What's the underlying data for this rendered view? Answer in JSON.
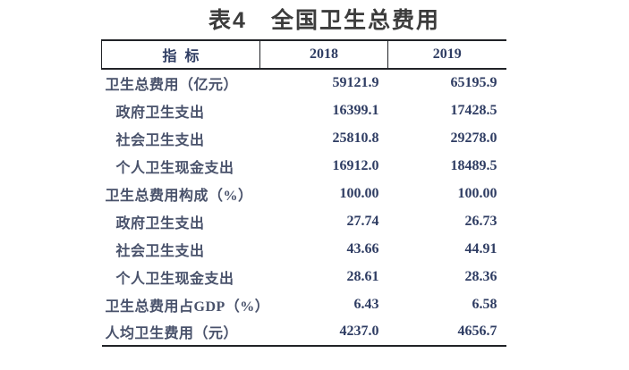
{
  "title": "表4　全国卫生总费用",
  "table": {
    "header": {
      "indicator": "指 标",
      "year_2018": "2018",
      "year_2019": "2019"
    },
    "rows": [
      {
        "label": "卫生总费用（亿元）",
        "indent": false,
        "y2018": "59121.9",
        "y2019": "65195.9"
      },
      {
        "label": "政府卫生支出",
        "indent": true,
        "y2018": "16399.1",
        "y2019": "17428.5"
      },
      {
        "label": "社会卫生支出",
        "indent": true,
        "y2018": "25810.8",
        "y2019": "29278.0"
      },
      {
        "label": "个人卫生现金支出",
        "indent": true,
        "y2018": "16912.0",
        "y2019": "18489.5"
      },
      {
        "label": "卫生总费用构成（%）",
        "indent": false,
        "y2018": "100.00",
        "y2019": "100.00"
      },
      {
        "label": "政府卫生支出",
        "indent": true,
        "y2018": "27.74",
        "y2019": "26.73"
      },
      {
        "label": "社会卫生支出",
        "indent": true,
        "y2018": "43.66",
        "y2019": "44.91"
      },
      {
        "label": "个人卫生现金支出",
        "indent": true,
        "y2018": "28.61",
        "y2019": "28.36"
      },
      {
        "label": "卫生总费用占GDP（%）",
        "indent": false,
        "y2018": "6.43",
        "y2019": "6.58"
      },
      {
        "label": "人均卫生费用（元）",
        "indent": false,
        "y2018": "4237.0",
        "y2019": "4656.7"
      }
    ]
  },
  "colors": {
    "title-color": "#3c3c3c",
    "label-color": "#49526b",
    "number-color": "#2f3d63",
    "border-color": "#212327",
    "background": "#ffffff"
  }
}
